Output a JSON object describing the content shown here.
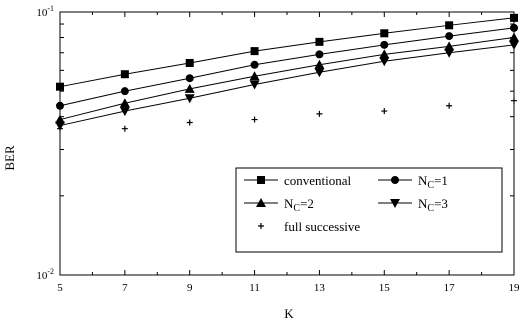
{
  "chart_data": {
    "type": "line",
    "title": "",
    "xlabel": "K",
    "ylabel": "BER",
    "x": [
      5,
      7,
      9,
      11,
      13,
      15,
      17,
      19
    ],
    "xlim": [
      5,
      19
    ],
    "ylim": [
      0.01,
      0.1
    ],
    "yscale": "log",
    "x_tick_labels": [
      "5",
      "7",
      "9",
      "11",
      "13",
      "15",
      "17",
      "19"
    ],
    "y_tick_labels": [
      {
        "base": "10",
        "exp": "-1",
        "value": 0.1
      },
      {
        "base": "10",
        "exp": "-2",
        "value": 0.01
      }
    ],
    "grid": false,
    "legend_position": "lower-right",
    "series": [
      {
        "name": "conventional",
        "legend_main": "conventional",
        "legend_sub": "",
        "legend_rest": "",
        "marker": "square",
        "line": true,
        "values": [
          0.052,
          0.058,
          0.064,
          0.071,
          0.077,
          0.083,
          0.089,
          0.095
        ]
      },
      {
        "name": "N_C=1",
        "legend_main": "N",
        "legend_sub": "C",
        "legend_rest": "=1",
        "marker": "circle",
        "line": true,
        "values": [
          0.044,
          0.05,
          0.056,
          0.063,
          0.069,
          0.075,
          0.081,
          0.087
        ]
      },
      {
        "name": "N_C=2",
        "legend_main": "N",
        "legend_sub": "C",
        "legend_rest": "=2",
        "marker": "triangle-up",
        "line": true,
        "values": [
          0.039,
          0.045,
          0.051,
          0.057,
          0.063,
          0.069,
          0.074,
          0.08
        ]
      },
      {
        "name": "N_C=3",
        "legend_main": "N",
        "legend_sub": "C",
        "legend_rest": "=3",
        "marker": "triangle-down",
        "line": true,
        "values": [
          0.037,
          0.042,
          0.047,
          0.053,
          0.059,
          0.065,
          0.07,
          0.075
        ]
      },
      {
        "name": "full successive",
        "legend_main": "full successive",
        "legend_sub": "",
        "legend_rest": "",
        "marker": "plus",
        "line": false,
        "values": [
          0.036,
          0.036,
          0.038,
          0.039,
          0.041,
          0.042,
          0.044,
          0.046
        ]
      }
    ]
  }
}
